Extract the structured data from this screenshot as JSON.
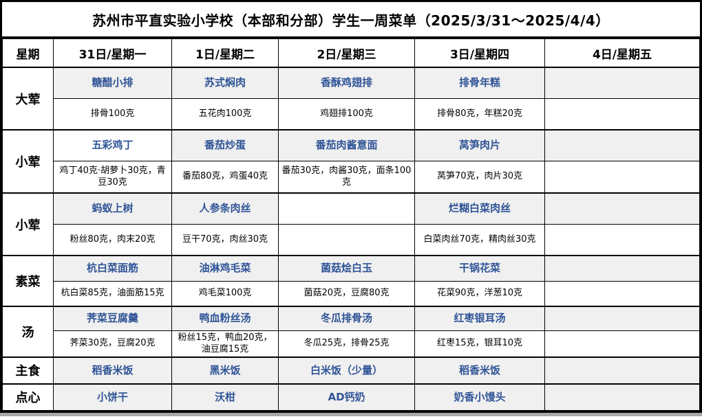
{
  "title": "苏州市平直实验小学校（本部和分部）学生一周菜单（2025/3/31～2025/4/4）",
  "colors": {
    "dish_text_blue": "#2f5496",
    "dish_cell_gray": "#f0f0f0",
    "border_black": "#000000"
  },
  "header": {
    "corner": "星期",
    "columns": [
      "31日/星期一",
      "1日/星期二",
      "2日/星期三",
      "3日/星期四",
      "4日/星期五"
    ]
  },
  "sections": [
    {
      "category": "大荤",
      "dishes": [
        "糖醋小排",
        "苏式焖肉",
        "香酥鸡翅排",
        "排骨年糕",
        ""
      ],
      "ingredients": [
        "排骨100克",
        "五花肉100克",
        "鸡翅排100克",
        "排骨80克，年糕20克",
        ""
      ],
      "white_dish_cells": []
    },
    {
      "category": "小荤",
      "dishes": [
        "五彩鸡丁",
        "番茄炒蛋",
        "番茄肉酱意面",
        "莴笋肉片",
        ""
      ],
      "ingredients": [
        "鸡丁40克·胡萝卜30克，青豆30克",
        "番茄80克，鸡蛋40克",
        "番茄30克，肉酱30克，面条100克",
        "莴笋70克，肉片30克",
        ""
      ],
      "white_dish_cells": [
        0
      ]
    },
    {
      "category": "小荤",
      "dishes": [
        "蚂蚁上树",
        "人参条肉丝",
        "",
        "烂糊白菜肉丝",
        ""
      ],
      "ingredients": [
        "粉丝80克，肉末20克",
        "豆干70克，肉丝30克",
        "",
        "白菜肉丝70克，精肉丝30克",
        ""
      ],
      "white_dish_cells": [
        2
      ]
    },
    {
      "category": "素菜",
      "dishes": [
        "杭白菜面筋",
        "油淋鸡毛菜",
        "菌菇烩白玉",
        "干锅花菜",
        ""
      ],
      "ingredients": [
        "杭白菜85克，油面筋15克",
        "鸡毛菜100克",
        "菌菇20克，豆腐80克",
        "花菜90克，洋葱10克",
        ""
      ],
      "white_dish_cells": []
    },
    {
      "category": "汤",
      "dishes": [
        "荠菜豆腐羹",
        "鸭血粉丝汤",
        "冬瓜排骨汤",
        "红枣银耳汤",
        ""
      ],
      "ingredients": [
        "荠菜30克，豆腐20克",
        "粉丝15克，鸭血20克，油豆腐15克",
        "冬瓜25克，排骨25克",
        "红枣15克，银耳10克",
        ""
      ],
      "white_dish_cells": []
    },
    {
      "category": "主食",
      "single": true,
      "dishes": [
        "稻香米饭",
        "黑米饭",
        "白米饭（少量）",
        "稻香米饭",
        ""
      ],
      "white_dish_cells": []
    },
    {
      "category": "点心",
      "single": true,
      "dishes": [
        "小饼干",
        "沃柑",
        "AD钙奶",
        "奶香小馒头",
        ""
      ],
      "white_dish_cells": []
    }
  ]
}
